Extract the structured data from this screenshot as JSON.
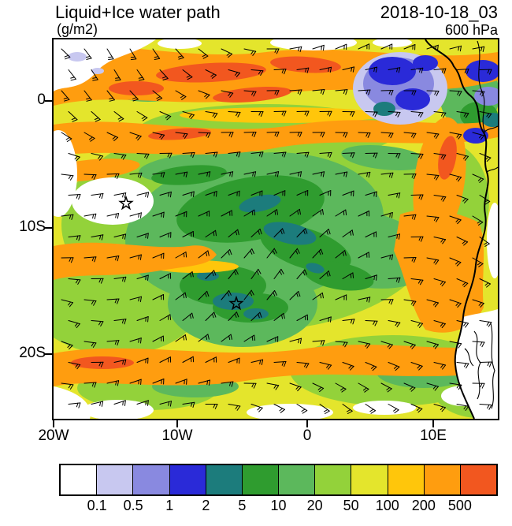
{
  "header": {
    "title": "Liquid+Ice water path",
    "units_label": "(g/m2)",
    "datetime": "2018-10-18_03",
    "level": "600 hPa"
  },
  "chart_data": {
    "type": "heatmap",
    "title": "Liquid+Ice water path",
    "units": "g/m2",
    "valid_datetime": "2018-10-18_03",
    "pressure_level": "600 hPa",
    "projection": "lat-lon map, west coast of southern Africa visible at right",
    "x_axis": {
      "label_type": "longitude",
      "ticks": [
        "20W",
        "10W",
        "0",
        "10E"
      ],
      "approx_range": [
        "20W",
        "15E"
      ]
    },
    "y_axis": {
      "label_type": "latitude",
      "ticks": [
        "0",
        "10S",
        "20S"
      ],
      "approx_range": [
        "5N",
        "25S"
      ]
    },
    "colorbar": {
      "boundary_labels": [
        "0.1",
        "0.5",
        "1",
        "2",
        "5",
        "10",
        "20",
        "50",
        "100",
        "200",
        "500"
      ],
      "colors": [
        "#ffffff",
        "#c8c8f0",
        "#8989e0",
        "#2a2ad8",
        "#1c7c7c",
        "#2f9c2f",
        "#5cb85c",
        "#93d23a",
        "#e4e52c",
        "#ffc60b",
        "#ff9d0f",
        "#f2571f"
      ]
    },
    "overlays": [
      "wind-barbs",
      "coastline",
      "country-borders",
      "star-markers"
    ],
    "markers": [
      {
        "type": "star",
        "approx_lon": "14W",
        "approx_lat": "8S"
      },
      {
        "type": "star",
        "approx_lon": "6W",
        "approx_lat": "16S"
      }
    ],
    "field_description": "High LWP (orange/red, 100-500+ g/m2) bands near 0-3S, along 13-14S, 21-23S and the Angola coast; broad yellow/yellow-green 20-100 g/m2 stratocumulus deck; green-teal minimum 2-20 g/m2 centered near 5W 10-16S; blue-purple 0.1-2 g/m2 convective patch near the Gulf of Guinea coast; white <0.1 g/m2 gaps at map corners and over inland southern Africa"
  }
}
